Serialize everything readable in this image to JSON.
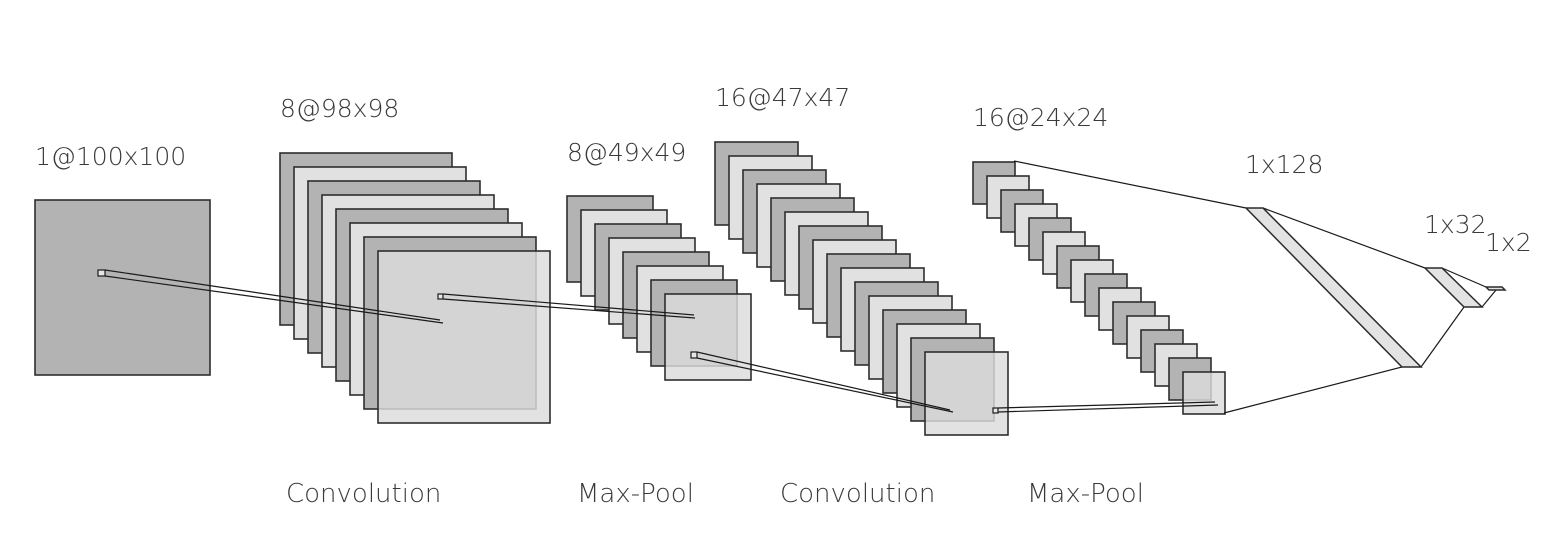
{
  "layers": [
    {
      "id": "input",
      "label": "1@100x100"
    },
    {
      "id": "conv1",
      "label": "8@98x98"
    },
    {
      "id": "pool1",
      "label": "8@49x49"
    },
    {
      "id": "conv2",
      "label": "16@47x47"
    },
    {
      "id": "pool2",
      "label": "16@24x24"
    },
    {
      "id": "fc1",
      "label": "1x128"
    },
    {
      "id": "fc2",
      "label": "1x32"
    },
    {
      "id": "fc3",
      "label": "1x2"
    }
  ],
  "operations": [
    {
      "id": "op-conv1",
      "label": "Convolution"
    },
    {
      "id": "op-pool1",
      "label": "Max-Pool"
    },
    {
      "id": "op-conv2",
      "label": "Convolution"
    },
    {
      "id": "op-pool2",
      "label": "Max-Pool"
    }
  ]
}
